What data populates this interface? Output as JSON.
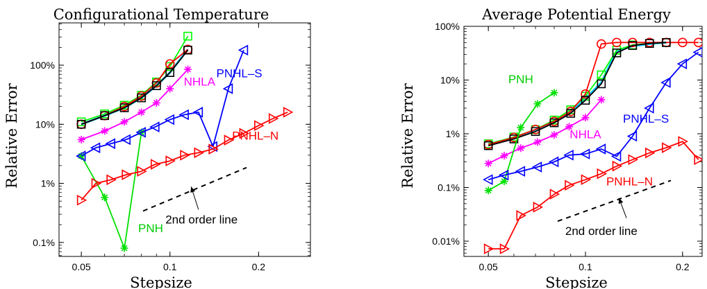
{
  "chart_data": [
    {
      "type": "line",
      "title": "Configurational Temperature",
      "xlabel": "Stepsize",
      "ylabel": "Relative Error",
      "xscale": "log",
      "yscale": "log",
      "xlim": [
        0.042,
        0.3
      ],
      "ylim": [
        0.00058,
        5.2
      ],
      "xticks": [
        {
          "v": 0.05,
          "label": "0.05"
        },
        {
          "v": 0.1,
          "label": "0.1"
        },
        {
          "v": 0.2,
          "label": "0.2"
        }
      ],
      "yticks": [
        {
          "v": 0.001,
          "label": "0.1%"
        },
        {
          "v": 0.01,
          "label": "1%"
        },
        {
          "v": 0.1,
          "label": "10%"
        },
        {
          "v": 1,
          "label": "100%"
        }
      ],
      "grid": false,
      "series": [
        {
          "name": "",
          "color": "#00ccff",
          "marker": "none",
          "lw": 3,
          "x": [
            0.05,
            0.06,
            0.07,
            0.08,
            0.09,
            0.1,
            0.115
          ],
          "y": [
            0.1,
            0.14,
            0.19,
            0.28,
            0.45,
            0.75,
            1.85
          ]
        },
        {
          "name": "",
          "color": "#00ff00",
          "marker": "square",
          "x": [
            0.05,
            0.06,
            0.07,
            0.08,
            0.09,
            0.1,
            0.115
          ],
          "y": [
            0.11,
            0.15,
            0.21,
            0.31,
            0.52,
            0.95,
            3.1
          ]
        },
        {
          "name": "",
          "color": "#ff0000",
          "marker": "circle",
          "x": [
            0.05,
            0.06,
            0.07,
            0.08,
            0.09,
            0.1,
            0.115
          ],
          "y": [
            0.1,
            0.14,
            0.2,
            0.3,
            0.5,
            1.05,
            1.85
          ]
        },
        {
          "name": "",
          "color": "#000000",
          "marker": "square",
          "x": [
            0.05,
            0.06,
            0.07,
            0.08,
            0.09,
            0.1,
            0.115
          ],
          "y": [
            0.1,
            0.14,
            0.19,
            0.28,
            0.45,
            0.75,
            1.8
          ]
        },
        {
          "name": "NHLA",
          "color": "#ff00ff",
          "marker": "asterisk",
          "x": [
            0.05,
            0.06,
            0.07,
            0.08,
            0.09,
            0.1,
            0.115
          ],
          "y": [
            0.055,
            0.077,
            0.11,
            0.16,
            0.23,
            0.4,
            0.85
          ]
        },
        {
          "name": "PNH",
          "color": "#00e000",
          "marker": "asterisk",
          "x": [
            0.05,
            0.06,
            0.07,
            0.08
          ],
          "y": [
            0.029,
            0.0058,
            0.0008,
            0.073
          ]
        },
        {
          "name": "PNHL-S",
          "color": "#0000ff",
          "marker": "triangle-left",
          "x": [
            0.05,
            0.056,
            0.063,
            0.071,
            0.08,
            0.089,
            0.1,
            0.112,
            0.125,
            0.14,
            0.158,
            0.178
          ],
          "y": [
            0.029,
            0.04,
            0.047,
            0.055,
            0.073,
            0.09,
            0.12,
            0.145,
            0.16,
            0.042,
            0.4,
            1.8
          ]
        },
        {
          "name": "PNHL-N",
          "color": "#ff0000",
          "marker": "triangle-right",
          "x": [
            0.05,
            0.056,
            0.063,
            0.071,
            0.08,
            0.089,
            0.1,
            0.112,
            0.125,
            0.14,
            0.158,
            0.178,
            0.2,
            0.224,
            0.251
          ],
          "y": [
            0.0052,
            0.01,
            0.0115,
            0.014,
            0.016,
            0.021,
            0.024,
            0.03,
            0.033,
            0.038,
            0.054,
            0.07,
            0.095,
            0.125,
            0.16
          ]
        }
      ],
      "labels": [
        {
          "text": "NHLA",
          "x": 0.126,
          "y": 0.45,
          "color": "#ff00ff"
        },
        {
          "text": "PNHL-S",
          "x": 0.172,
          "y": 0.62,
          "color": "#0000ff"
        },
        {
          "text": "PNHL-N",
          "x": 0.195,
          "y": 0.055,
          "color": "#ff0000"
        },
        {
          "text": "PNH",
          "x": 0.086,
          "y": 0.0015,
          "color": "#00cc00"
        },
        {
          "text": "2nd order line",
          "x": 0.128,
          "y": 0.0021,
          "color": "#000000"
        }
      ],
      "reference_line": {
        "x": [
          0.081,
          0.182
        ],
        "y": [
          0.0034,
          0.0185
        ],
        "style": "dashed"
      },
      "arrow": {
        "from": [
          0.125,
          0.0036
        ],
        "to": [
          0.118,
          0.0088
        ]
      }
    },
    {
      "type": "line",
      "title": "Average Potential Energy",
      "xlabel": "Stepsize",
      "ylabel": "Relative Error",
      "xscale": "log",
      "yscale": "log",
      "xlim": [
        0.042,
        0.23
      ],
      "ylim": [
        5.2e-05,
        1.0
      ],
      "xticks": [
        {
          "v": 0.05,
          "label": "0.05"
        },
        {
          "v": 0.1,
          "label": "0.1"
        },
        {
          "v": 0.2,
          "label": "0.2"
        }
      ],
      "yticks": [
        {
          "v": 0.0001,
          "label": "0.01%"
        },
        {
          "v": 0.001,
          "label": "0.1%"
        },
        {
          "v": 0.01,
          "label": "1%"
        },
        {
          "v": 0.1,
          "label": "10%"
        },
        {
          "v": 1,
          "label": "100%"
        }
      ],
      "grid": false,
      "series": [
        {
          "name": "",
          "color": "#00ccff",
          "marker": "none",
          "lw": 3,
          "x": [
            0.05,
            0.06,
            0.07,
            0.08,
            0.09,
            0.1,
            0.112,
            0.125,
            0.14,
            0.158,
            0.178
          ],
          "y": [
            0.0063,
            0.0084,
            0.0115,
            0.017,
            0.025,
            0.045,
            0.09,
            0.35,
            0.43,
            0.47,
            0.5
          ]
        },
        {
          "name": "",
          "color": "#00ff00",
          "marker": "square",
          "x": [
            0.05,
            0.06,
            0.07,
            0.08,
            0.09,
            0.1,
            0.112,
            0.125,
            0.14,
            0.158,
            0.178
          ],
          "y": [
            0.0065,
            0.0087,
            0.012,
            0.018,
            0.028,
            0.05,
            0.125,
            0.36,
            0.45,
            0.48,
            0.5
          ]
        },
        {
          "name": "",
          "color": "#ff0000",
          "marker": "circle",
          "x": [
            0.05,
            0.06,
            0.07,
            0.08,
            0.09,
            0.1,
            0.112,
            0.125,
            0.14,
            0.158,
            0.178,
            0.2,
            0.224
          ],
          "y": [
            0.0063,
            0.0085,
            0.012,
            0.017,
            0.026,
            0.055,
            0.47,
            0.5,
            0.5,
            0.5,
            0.5,
            0.5,
            0.5
          ]
        },
        {
          "name": "",
          "color": "#000000",
          "marker": "square",
          "x": [
            0.05,
            0.06,
            0.07,
            0.08,
            0.09,
            0.1,
            0.112,
            0.125,
            0.14,
            0.158,
            0.178
          ],
          "y": [
            0.006,
            0.008,
            0.011,
            0.016,
            0.024,
            0.042,
            0.085,
            0.32,
            0.44,
            0.48,
            0.5
          ]
        },
        {
          "name": "NHLA",
          "color": "#ff00ff",
          "marker": "asterisk",
          "x": [
            0.05,
            0.056,
            0.063,
            0.071,
            0.08,
            0.089,
            0.1,
            0.112
          ],
          "y": [
            0.0028,
            0.0039,
            0.0054,
            0.007,
            0.0095,
            0.0135,
            0.02,
            0.043
          ]
        },
        {
          "name": "PNH",
          "color": "#00e000",
          "marker": "asterisk",
          "x": [
            0.05,
            0.056,
            0.063,
            0.071,
            0.08
          ],
          "y": [
            0.00088,
            0.0013,
            0.013,
            0.036,
            0.058
          ]
        },
        {
          "name": "PNHL-S",
          "color": "#0000ff",
          "marker": "triangle-left",
          "x": [
            0.05,
            0.056,
            0.063,
            0.071,
            0.08,
            0.089,
            0.1,
            0.112,
            0.125,
            0.14,
            0.158,
            0.178,
            0.2,
            0.224
          ],
          "y": [
            0.0014,
            0.0017,
            0.002,
            0.0024,
            0.003,
            0.004,
            0.0042,
            0.0052,
            0.0038,
            0.009,
            0.03,
            0.09,
            0.2,
            0.33
          ]
        },
        {
          "name": "PNHL-N",
          "color": "#ff0000",
          "marker": "triangle-right",
          "x": [
            0.05,
            0.056,
            0.063,
            0.071,
            0.08,
            0.089,
            0.1,
            0.112,
            0.125,
            0.14,
            0.158,
            0.178,
            0.2,
            0.224
          ],
          "y": [
            7.2e-05,
            7.2e-05,
            0.0003,
            0.00043,
            0.00075,
            0.0011,
            0.0014,
            0.0018,
            0.0025,
            0.0033,
            0.0044,
            0.0055,
            0.0072,
            0.0033
          ]
        }
      ],
      "labels": [
        {
          "text": "PNH",
          "x": 0.063,
          "y": 0.088,
          "color": "#00cc00"
        },
        {
          "text": "NHLA",
          "x": 0.1,
          "y": 0.0082,
          "color": "#ff00ff"
        },
        {
          "text": "PNHL-S",
          "x": 0.154,
          "y": 0.016,
          "color": "#0000ff"
        },
        {
          "text": "PNHL-N",
          "x": 0.137,
          "y": 0.0011,
          "color": "#ff0000"
        },
        {
          "text": "2nd order line",
          "x": 0.112,
          "y": 0.00013,
          "color": "#000000"
        }
      ],
      "reference_line": {
        "x": [
          0.082,
          0.184
        ],
        "y": [
          0.000235,
          0.00135
        ],
        "style": "dashed"
      },
      "arrow": {
        "from": [
          0.134,
          0.00027
        ],
        "to": [
          0.127,
          0.00064
        ]
      }
    }
  ]
}
